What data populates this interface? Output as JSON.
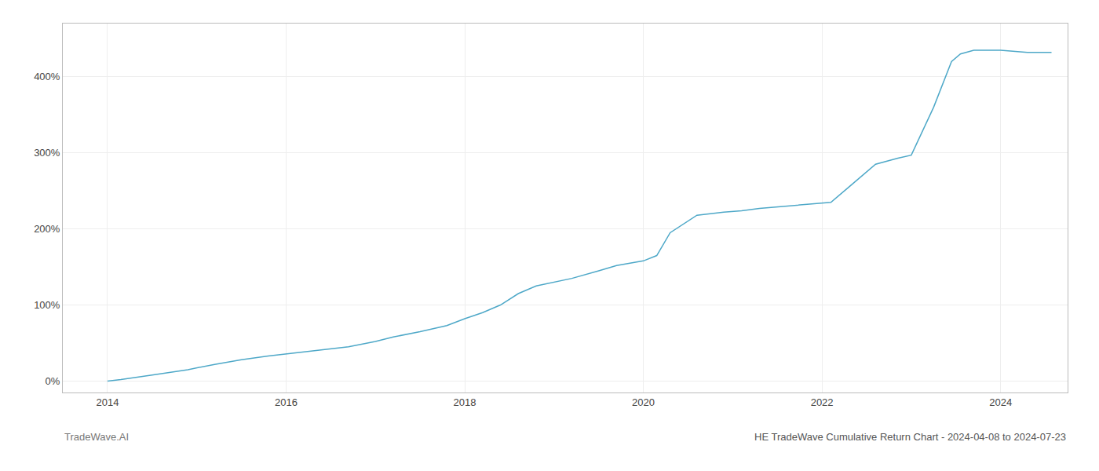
{
  "chart_data": {
    "type": "line",
    "title": "HE TradeWave Cumulative Return Chart - 2024-04-08 to 2024-07-23",
    "annotations": [
      "TradeWave.AI"
    ],
    "x": [
      2014.0,
      2014.15,
      2014.5,
      2014.9,
      2015.2,
      2015.5,
      2015.8,
      2016.1,
      2016.4,
      2016.7,
      2017.0,
      2017.2,
      2017.5,
      2017.8,
      2018.0,
      2018.2,
      2018.4,
      2018.6,
      2018.8,
      2019.0,
      2019.2,
      2019.5,
      2019.7,
      2020.0,
      2020.15,
      2020.3,
      2020.6,
      2020.9,
      2021.1,
      2021.3,
      2021.6,
      2021.9,
      2022.1,
      2022.3,
      2022.6,
      2022.85,
      2023.0,
      2023.25,
      2023.45,
      2023.55,
      2023.7,
      2024.0,
      2024.3,
      2024.57
    ],
    "values": [
      0,
      2,
      8,
      15,
      22,
      28,
      33,
      37,
      41,
      45,
      52,
      58,
      65,
      73,
      82,
      90,
      100,
      115,
      125,
      130,
      135,
      145,
      152,
      158,
      165,
      195,
      218,
      222,
      224,
      227,
      230,
      233,
      235,
      255,
      285,
      293,
      297,
      360,
      420,
      430,
      435,
      435,
      432,
      432
    ],
    "color": "#4ea8c8",
    "xlim": [
      2013.5,
      2024.75
    ],
    "ylim": [
      -15,
      470
    ],
    "xticks": [
      2014,
      2016,
      2018,
      2020,
      2022,
      2024
    ],
    "yticks": [
      {
        "value": 0,
        "label": "0%"
      },
      {
        "value": 100,
        "label": "100%"
      },
      {
        "value": 200,
        "label": "200%"
      },
      {
        "value": 300,
        "label": "300%"
      },
      {
        "value": 400,
        "label": "400%"
      }
    ],
    "grid": true
  }
}
